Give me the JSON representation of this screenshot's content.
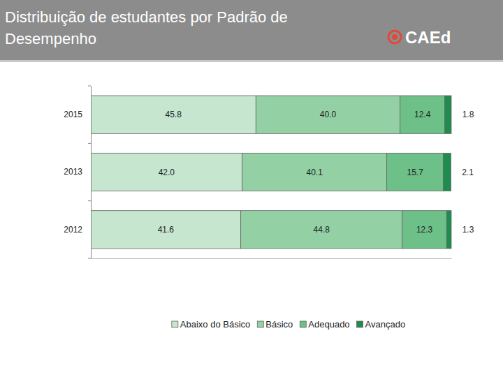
{
  "chart_data": {
    "type": "bar",
    "title": "Distribuição de estudantes por Padrão de Desempenho",
    "annotations": [
      "CAEd"
    ],
    "orientation": "horizontal",
    "stacked": true,
    "data_labels": true,
    "tick_labels": "y",
    "legend": "bottom",
    "xlim": [
      0,
      100
    ],
    "categories": [
      "2015",
      "2013",
      "2012"
    ],
    "series": [
      {
        "name": "Abaixo do Básico",
        "color": "#c6e6cf",
        "values": [
          45.8,
          42.0,
          41.6
        ],
        "value_labels": [
          "45.8",
          "42.0",
          "41.6"
        ]
      },
      {
        "name": "Básico",
        "color": "#93d1a5",
        "values": [
          40.0,
          40.1,
          44.8
        ],
        "value_labels": [
          "40.0",
          "40.1",
          "44.8"
        ]
      },
      {
        "name": "Adequado",
        "color": "#6cc088",
        "values": [
          12.4,
          15.7,
          12.3
        ],
        "value_labels": [
          "12.4",
          "15.7",
          "12.3"
        ]
      },
      {
        "name": "Avançado",
        "color": "#1f8c4f",
        "values": [
          1.8,
          2.1,
          1.3
        ],
        "value_labels": [
          "1.8",
          "2.1",
          "1.3"
        ]
      }
    ]
  }
}
